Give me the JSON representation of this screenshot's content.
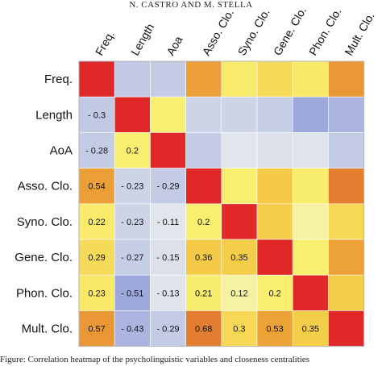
{
  "page": {
    "header": "N. CASTRO AND M. STELLA"
  },
  "chart_data": {
    "type": "heatmap",
    "title": "",
    "labels": [
      "Freq.",
      "Length",
      "AoA",
      "Asso. Clo.",
      "Syno. Clo.",
      "Gene. Clo.",
      "Phon. Clo.",
      "Mult. Clo."
    ],
    "column_labels": [
      "Freq.",
      "Length",
      "Aoa",
      "Asso. Clo.",
      "Syno. Clo.",
      "Gene. Clo.",
      "Phon. Clo.",
      "Mult. Clo."
    ],
    "matrix": [
      [
        1,
        -0.3,
        -0.28,
        0.54,
        0.22,
        0.29,
        0.23,
        0.57
      ],
      [
        -0.3,
        1,
        0.2,
        -0.23,
        -0.23,
        -0.27,
        -0.51,
        -0.43
      ],
      [
        -0.28,
        0.2,
        1,
        -0.29,
        -0.11,
        -0.15,
        -0.13,
        -0.29
      ],
      [
        0.54,
        -0.23,
        -0.29,
        1,
        0.2,
        0.36,
        0.21,
        0.68
      ],
      [
        0.22,
        -0.23,
        -0.11,
        0.2,
        1,
        0.35,
        0.12,
        0.3
      ],
      [
        0.29,
        -0.27,
        -0.15,
        0.36,
        0.35,
        1,
        0.2,
        0.53
      ],
      [
        0.23,
        -0.51,
        -0.13,
        0.21,
        0.12,
        0.2,
        1,
        0.35
      ],
      [
        0.57,
        -0.43,
        -0.29,
        0.68,
        0.3,
        0.53,
        0.35,
        1
      ]
    ],
    "printed_values": [
      [
        null,
        null,
        null,
        null,
        null,
        null,
        null,
        null
      ],
      [
        "- 0.3",
        null,
        null,
        null,
        null,
        null,
        null,
        null
      ],
      [
        "- 0.28",
        "0.2",
        null,
        null,
        null,
        null,
        null,
        null
      ],
      [
        "0.54",
        "- 0.23",
        "- 0.29",
        null,
        null,
        null,
        null,
        null
      ],
      [
        "0.22",
        "- 0.23",
        "- 0.11",
        "0.2",
        null,
        null,
        null,
        null
      ],
      [
        "0.29",
        "- 0.27",
        "- 0.15",
        "0.36",
        "0.35",
        null,
        null,
        null
      ],
      [
        "0.23",
        "- 0.51",
        "- 0.13",
        "0.21",
        "0.12",
        "0.2",
        null,
        null
      ],
      [
        "0.57",
        "- 0.43",
        "- 0.29",
        "0.68",
        "0.3",
        "0.53",
        "0.35",
        null
      ]
    ],
    "value_range": [
      -0.6,
      1
    ],
    "diagonal_color": "#e02828",
    "grid": true,
    "colors": {
      "strong_negative": "#8e9bd7",
      "neutral": "#f4f7f2",
      "weak_positive": "#f8ef70",
      "mid_positive": "#f3c13c",
      "strong_positive": "#e2792f",
      "diagonal": "#e02828"
    }
  },
  "caption": "Figure: Correlation heatmap of the psycholinguistic variables and closeness centralities"
}
